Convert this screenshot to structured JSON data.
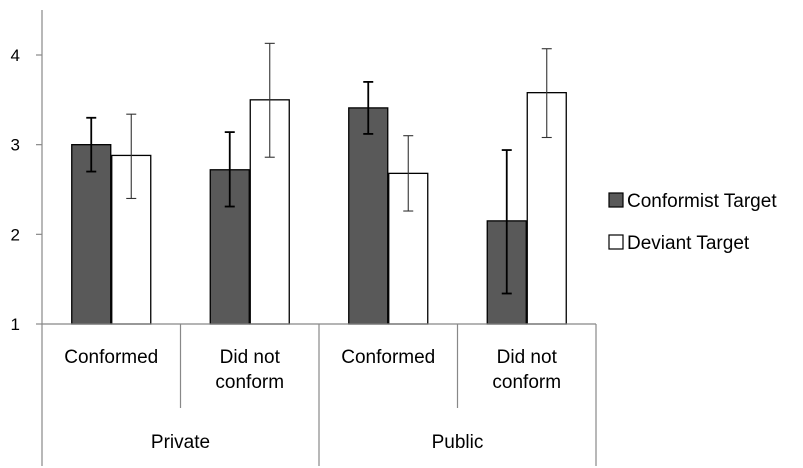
{
  "chart_data": {
    "type": "bar",
    "title": "",
    "xlabel": "",
    "ylabel": "",
    "ylim": [
      1,
      4
    ],
    "yticks": [
      "1",
      "2",
      "3",
      "4"
    ],
    "groups": [
      {
        "label": "Private",
        "subcategories": [
          {
            "label": [
              "Conformed"
            ]
          },
          {
            "label": [
              "Did not",
              "conform"
            ]
          }
        ]
      },
      {
        "label": "Public",
        "subcategories": [
          {
            "label": [
              "Conformed"
            ]
          },
          {
            "label": [
              "Did not",
              "conform"
            ]
          }
        ]
      }
    ],
    "series": [
      {
        "name": "Conformist Target",
        "color": "#595959",
        "values": [
          3.0,
          2.72,
          3.41,
          2.15
        ],
        "error_low": [
          2.7,
          2.31,
          3.12,
          1.34
        ],
        "error_high": [
          3.3,
          3.14,
          3.7,
          2.94
        ]
      },
      {
        "name": "Deviant Target",
        "color": "#ffffff",
        "values": [
          2.88,
          3.5,
          2.68,
          3.58
        ],
        "error_low": [
          2.4,
          2.86,
          2.26,
          3.08
        ],
        "error_high": [
          3.34,
          4.13,
          3.1,
          4.07
        ]
      }
    ],
    "grid": false,
    "legend": "right"
  }
}
